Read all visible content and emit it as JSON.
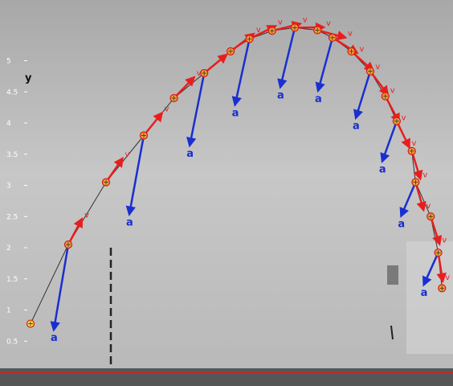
{
  "chart_data": {
    "type": "scatter",
    "title": "",
    "xlabel": "",
    "ylabel": "y",
    "ylim": [
      0,
      5.5
    ],
    "y_ticks": [
      "0.5",
      "1",
      "1.5",
      "2",
      "2.5",
      "3",
      "3.5",
      "4",
      "4.5",
      "5"
    ],
    "trajectory_points": [
      {
        "x": 0.0,
        "y": 0.78
      },
      {
        "x": 0.5,
        "y": 2.05
      },
      {
        "x": 1.0,
        "y": 3.05
      },
      {
        "x": 1.5,
        "y": 3.8
      },
      {
        "x": 1.9,
        "y": 4.4
      },
      {
        "x": 2.3,
        "y": 4.8
      },
      {
        "x": 2.65,
        "y": 5.15
      },
      {
        "x": 2.9,
        "y": 5.35
      },
      {
        "x": 3.2,
        "y": 5.48
      },
      {
        "x": 3.5,
        "y": 5.53
      },
      {
        "x": 3.8,
        "y": 5.49
      },
      {
        "x": 4.0,
        "y": 5.37
      },
      {
        "x": 4.25,
        "y": 5.15
      },
      {
        "x": 4.5,
        "y": 4.83
      },
      {
        "x": 4.7,
        "y": 4.43
      },
      {
        "x": 4.85,
        "y": 4.03
      },
      {
        "x": 5.05,
        "y": 3.55
      },
      {
        "x": 5.1,
        "y": 3.05
      },
      {
        "x": 5.3,
        "y": 2.5
      },
      {
        "x": 5.4,
        "y": 1.92
      },
      {
        "x": 5.45,
        "y": 1.35
      }
    ],
    "velocity_label": "v",
    "acceleration_label": "a",
    "colors": {
      "trajectory_line": "#333333",
      "point_fill": "#f0a030",
      "point_edge": "#d41a1a",
      "first_point_fill": "#f2e035",
      "velocity": "#e81e1e",
      "acceleration": "#1a2fd0",
      "background": "#bdbdbd"
    }
  }
}
